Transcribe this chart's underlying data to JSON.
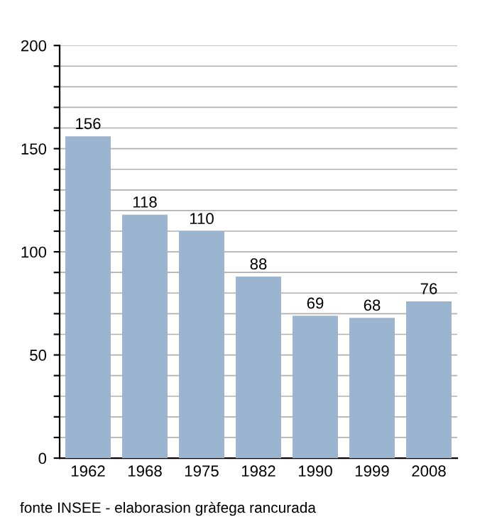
{
  "chart_data": {
    "type": "bar",
    "categories": [
      "1962",
      "1968",
      "1975",
      "1982",
      "1990",
      "1999",
      "2008"
    ],
    "values": [
      156,
      118,
      110,
      88,
      69,
      68,
      76
    ],
    "color": "#9bb4d0",
    "data_labels": true,
    "ylim": [
      0,
      200
    ],
    "yticks": [
      0,
      {
        "value": 10,
        "label": null
      },
      {
        "value": 20,
        "label": null
      },
      {
        "value": 30,
        "label": null
      },
      {
        "value": 40,
        "label": null
      },
      50,
      {
        "value": 60,
        "label": null
      },
      {
        "value": 70,
        "label": null
      },
      {
        "value": 80,
        "label": null
      },
      {
        "value": 90,
        "label": null
      },
      100,
      {
        "value": 110,
        "label": null
      },
      {
        "value": 120,
        "label": null
      },
      {
        "value": 130,
        "label": null
      },
      {
        "value": 140,
        "label": null
      },
      150,
      {
        "value": 160,
        "label": null
      },
      {
        "value": 170,
        "label": null
      },
      {
        "value": 180,
        "label": null
      },
      {
        "value": 190,
        "label": null
      },
      200
    ],
    "grid": "y",
    "annotations": [
      "fonte INSEE - elaborasion gràfega rancurada"
    ]
  }
}
